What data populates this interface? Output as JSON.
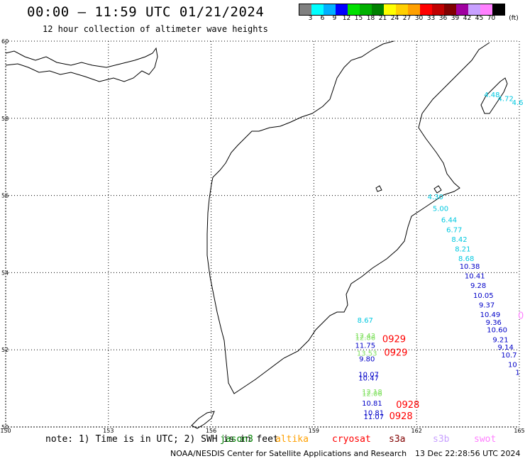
{
  "header": {
    "title": "00:00 — 11:59 UTC 01/21/2024",
    "subtitle": "12 hour collection of altimeter wave heights"
  },
  "colorbar": {
    "unit": "(ft)",
    "entries": [
      {
        "color": "#808080",
        "label": "3"
      },
      {
        "color": "#00ffff",
        "label": "6"
      },
      {
        "color": "#00b0ff",
        "label": "9"
      },
      {
        "color": "#0000ff",
        "label": "12"
      },
      {
        "color": "#00e000",
        "label": "15"
      },
      {
        "color": "#00b000",
        "label": "18"
      },
      {
        "color": "#008000",
        "label": "21"
      },
      {
        "color": "#ffff00",
        "label": "24"
      },
      {
        "color": "#ffd000",
        "label": "27"
      },
      {
        "color": "#ffa000",
        "label": "30"
      },
      {
        "color": "#ff0000",
        "label": "33"
      },
      {
        "color": "#c00000",
        "label": "36"
      },
      {
        "color": "#800000",
        "label": "39"
      },
      {
        "color": "#a000a0",
        "label": "42"
      },
      {
        "color": "#c8a0ff",
        "label": "45"
      },
      {
        "color": "#ff80ff",
        "label": "70"
      },
      {
        "color": "#000000",
        "label": ""
      }
    ]
  },
  "map": {
    "lon_range": [
      150,
      165
    ],
    "lat_range": [
      50,
      60
    ],
    "lon_ticks": [
      "150",
      "153",
      "156",
      "159",
      "162",
      "165"
    ],
    "lat_ticks": [
      "60",
      "58",
      "56",
      "54",
      "52",
      "50"
    ],
    "grid": "dotted"
  },
  "observations": [
    {
      "lon": 164.2,
      "lat": 58.55,
      "text": "4.48",
      "color": "#00c8e0"
    },
    {
      "lon": 164.6,
      "lat": 58.45,
      "text": "4.72",
      "color": "#00c8e0"
    },
    {
      "lon": 164.95,
      "lat": 58.35,
      "text": "4.6",
      "color": "#00c8e0"
    },
    {
      "lon": 162.55,
      "lat": 55.9,
      "text": "4.30",
      "color": "#00c8e0"
    },
    {
      "lon": 162.7,
      "lat": 55.6,
      "text": "5.00",
      "color": "#00c8e0"
    },
    {
      "lon": 162.95,
      "lat": 55.3,
      "text": "6.44",
      "color": "#00c8e0"
    },
    {
      "lon": 163.1,
      "lat": 55.05,
      "text": "6.77",
      "color": "#00c8e0"
    },
    {
      "lon": 163.25,
      "lat": 54.8,
      "text": "8.42",
      "color": "#00c8e0"
    },
    {
      "lon": 163.35,
      "lat": 54.55,
      "text": "8.21",
      "color": "#00c8e0"
    },
    {
      "lon": 163.45,
      "lat": 54.3,
      "text": "8.68",
      "color": "#00c8e0"
    },
    {
      "lon": 163.55,
      "lat": 54.1,
      "text": "10.38",
      "color": "#0000c8"
    },
    {
      "lon": 163.7,
      "lat": 53.85,
      "text": "10.41",
      "color": "#0000c8"
    },
    {
      "lon": 163.8,
      "lat": 53.6,
      "text": "9.28",
      "color": "#0000c8"
    },
    {
      "lon": 163.95,
      "lat": 53.35,
      "text": "10.05",
      "color": "#0000c8"
    },
    {
      "lon": 164.05,
      "lat": 53.1,
      "text": "9.37",
      "color": "#0000c8"
    },
    {
      "lon": 164.15,
      "lat": 52.85,
      "text": "10.49",
      "color": "#0000c8"
    },
    {
      "lon": 164.25,
      "lat": 52.65,
      "text": "9.36",
      "color": "#0000c8"
    },
    {
      "lon": 164.35,
      "lat": 52.45,
      "text": "10.60",
      "color": "#0000c8"
    },
    {
      "lon": 164.45,
      "lat": 52.2,
      "text": "9.21",
      "color": "#0000c8"
    },
    {
      "lon": 164.6,
      "lat": 52.0,
      "text": "9.14",
      "color": "#0000c8"
    },
    {
      "lon": 164.7,
      "lat": 51.8,
      "text": "10.7",
      "color": "#0000c8"
    },
    {
      "lon": 164.8,
      "lat": 51.55,
      "text": "10",
      "color": "#0000c8"
    },
    {
      "lon": 164.95,
      "lat": 51.35,
      "text": "1",
      "color": "#0000c8"
    },
    {
      "lon": 160.5,
      "lat": 52.7,
      "text": "8.67",
      "color": "#00c8e0"
    },
    {
      "lon": 160.5,
      "lat": 52.3,
      "text": "12.43",
      "color": "#80e060"
    },
    {
      "lon": 160.5,
      "lat": 52.25,
      "text": "12.86",
      "color": "#80e060"
    },
    {
      "lon": 160.5,
      "lat": 52.05,
      "text": "11.75",
      "color": "#0000c8"
    },
    {
      "lon": 160.55,
      "lat": 51.85,
      "text": "13.53",
      "color": "#80e060"
    },
    {
      "lon": 160.55,
      "lat": 51.7,
      "text": "9.80",
      "color": "#0000c8"
    },
    {
      "lon": 160.6,
      "lat": 51.3,
      "text": "10.07",
      "color": "#0000c8"
    },
    {
      "lon": 160.6,
      "lat": 51.2,
      "text": "10.47",
      "color": "#0000c8"
    },
    {
      "lon": 160.7,
      "lat": 50.85,
      "text": "12.18",
      "color": "#80e060"
    },
    {
      "lon": 160.7,
      "lat": 50.8,
      "text": "12.06",
      "color": "#80e060"
    },
    {
      "lon": 160.7,
      "lat": 50.55,
      "text": "10.81",
      "color": "#0000c8"
    },
    {
      "lon": 160.75,
      "lat": 50.3,
      "text": "10.81",
      "color": "#0000c8"
    },
    {
      "lon": 160.75,
      "lat": 50.2,
      "text": "11.07",
      "color": "#0000c8"
    }
  ],
  "pass_times": [
    {
      "lon": 161.0,
      "lat": 52.2,
      "text": "0929",
      "color": "#ff0000"
    },
    {
      "lon": 161.05,
      "lat": 51.85,
      "text": "0929",
      "color": "#ff0000"
    },
    {
      "lon": 161.4,
      "lat": 50.5,
      "text": "0928",
      "color": "#ff0000"
    },
    {
      "lon": 161.2,
      "lat": 50.2,
      "text": "0928",
      "color": "#ff0000"
    },
    {
      "lon": 165.0,
      "lat": 52.8,
      "text": "0",
      "color": "#ff80ff"
    }
  ],
  "footer": {
    "note": "note: 1) Time is in UTC; 2) SWH is in feet",
    "satellites": [
      {
        "name": "jason3",
        "color": "#008000"
      },
      {
        "name": "altika",
        "color": "#ffa000"
      },
      {
        "name": "cryosat",
        "color": "#ff0000"
      },
      {
        "name": "s3a",
        "color": "#800000"
      },
      {
        "name": "s3b",
        "color": "#c8a0ff"
      },
      {
        "name": "swot",
        "color": "#ff80ff"
      }
    ],
    "credit": "NOAA/NESDIS Center for Satellite Applications and Research",
    "timestamp": "13 Dec 22:28:56 UTC 2024"
  }
}
